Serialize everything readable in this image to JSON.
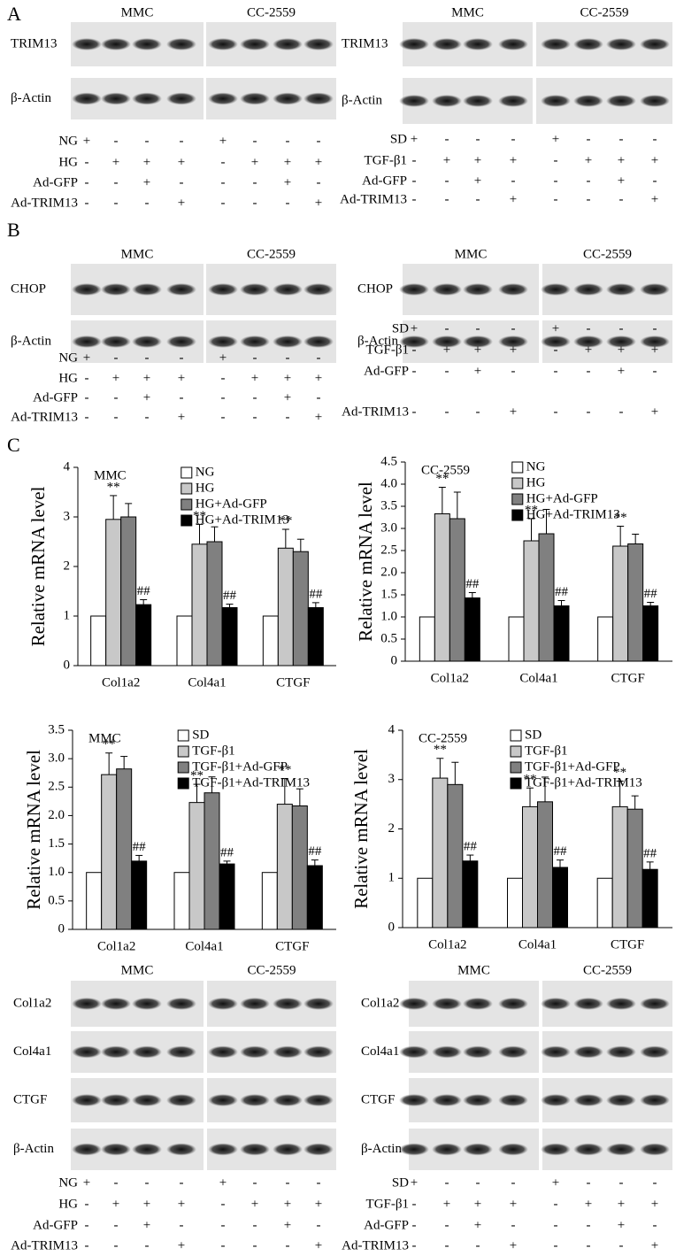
{
  "panel_labels": [
    "A",
    "B",
    "C"
  ],
  "blots": [
    {
      "cell_lines": [
        "MMC",
        "CC-2559"
      ],
      "rows": [
        "TRIM13",
        "β-Actin"
      ],
      "conditions": [
        {
          "name": "NG",
          "signs": [
            "+",
            "-",
            "-",
            "-",
            "+",
            "-",
            "-",
            "-"
          ]
        },
        {
          "name": "HG",
          "signs": [
            "-",
            "+",
            "+",
            "+",
            "-",
            "+",
            "+",
            "+"
          ]
        },
        {
          "name": "Ad-GFP",
          "signs": [
            "-",
            "-",
            "+",
            "-",
            "-",
            "-",
            "+",
            "-"
          ]
        },
        {
          "name": "Ad-TRIM13",
          "signs": [
            "-",
            "-",
            "-",
            "+",
            "-",
            "-",
            "-",
            "+"
          ]
        }
      ]
    },
    {
      "cell_lines": [
        "MMC",
        "CC-2559"
      ],
      "rows": [
        "TRIM13",
        "β-Actin"
      ],
      "conditions": [
        {
          "name": "SD",
          "signs": [
            "+",
            "-",
            "-",
            "-",
            "+",
            "-",
            "-",
            "-"
          ]
        },
        {
          "name": "TGF-β1",
          "signs": [
            "-",
            "+",
            "+",
            "+",
            "-",
            "+",
            "+",
            "+"
          ]
        },
        {
          "name": "Ad-GFP",
          "signs": [
            "-",
            "-",
            "+",
            "-",
            "-",
            "-",
            "+",
            "-"
          ]
        },
        {
          "name": "Ad-TRIM13",
          "signs": [
            "-",
            "-",
            "-",
            "+",
            "-",
            "-",
            "-",
            "+"
          ]
        }
      ]
    },
    {
      "cell_lines": [
        "MMC",
        "CC-2559"
      ],
      "rows": [
        "CHOP",
        "β-Actin"
      ],
      "conditions": [
        {
          "name": "NG",
          "signs": [
            "+",
            "-",
            "-",
            "-",
            "+",
            "-",
            "-",
            "-"
          ]
        },
        {
          "name": "HG",
          "signs": [
            "-",
            "+",
            "+",
            "+",
            "-",
            "+",
            "+",
            "+"
          ]
        },
        {
          "name": "Ad-GFP",
          "signs": [
            "-",
            "-",
            "+",
            "-",
            "-",
            "-",
            "+",
            "-"
          ]
        },
        {
          "name": "Ad-TRIM13",
          "signs": [
            "-",
            "-",
            "-",
            "+",
            "-",
            "-",
            "-",
            "+"
          ]
        }
      ]
    },
    {
      "cell_lines": [
        "MMC",
        "CC-2559"
      ],
      "rows": [
        "CHOP",
        "β-Actin"
      ],
      "conditions": [
        {
          "name": "SD",
          "signs": [
            "+",
            "-",
            "-",
            "-",
            "+",
            "-",
            "-",
            "-"
          ]
        },
        {
          "name": "TGF-β1",
          "signs": [
            "-",
            "+",
            "+",
            "+",
            "-",
            "+",
            "+",
            "+"
          ]
        },
        {
          "name": "Ad-GFP",
          "signs": [
            "-",
            "-",
            "+",
            "-",
            "-",
            "-",
            "+",
            "-"
          ]
        },
        {
          "name": "Ad-TRIM13",
          "signs": [
            "-",
            "-",
            "-",
            "+",
            "-",
            "-",
            "-",
            "+"
          ]
        }
      ]
    },
    {
      "cell_lines": [
        "MMC",
        "CC-2559"
      ],
      "rows": [
        "Col1a2",
        "Col4a1",
        "CTGF",
        "β-Actin"
      ],
      "conditions": [
        {
          "name": "NG",
          "signs": [
            "+",
            "-",
            "-",
            "-",
            "+",
            "-",
            "-",
            "-"
          ]
        },
        {
          "name": "HG",
          "signs": [
            "-",
            "+",
            "+",
            "+",
            "-",
            "+",
            "+",
            "+"
          ]
        },
        {
          "name": "Ad-GFP",
          "signs": [
            "-",
            "-",
            "+",
            "-",
            "-",
            "-",
            "+",
            "-"
          ]
        },
        {
          "name": "Ad-TRIM13",
          "signs": [
            "-",
            "-",
            "-",
            "+",
            "-",
            "-",
            "-",
            "+"
          ]
        }
      ]
    },
    {
      "cell_lines": [
        "MMC",
        "CC-2559"
      ],
      "rows": [
        "Col1a2",
        "Col4a1",
        "CTGF",
        "β-Actin"
      ],
      "conditions": [
        {
          "name": "SD",
          "signs": [
            "+",
            "-",
            "-",
            "-",
            "+",
            "-",
            "-",
            "-"
          ]
        },
        {
          "name": "TGF-β1",
          "signs": [
            "-",
            "+",
            "+",
            "+",
            "-",
            "+",
            "+",
            "+"
          ]
        },
        {
          "name": "Ad-GFP",
          "signs": [
            "-",
            "-",
            "+",
            "-",
            "-",
            "-",
            "+",
            "-"
          ]
        },
        {
          "name": "Ad-TRIM13",
          "signs": [
            "-",
            "-",
            "-",
            "+",
            "-",
            "-",
            "-",
            "+"
          ]
        }
      ]
    }
  ],
  "chart_data": [
    {
      "type": "bar",
      "title": "MMC",
      "y_label": "Relative mRNA level",
      "legend": "upper right",
      "categories": [
        "Col1a2",
        "Col4a1",
        "CTGF"
      ],
      "ylim": [
        0,
        4
      ],
      "yticks": [
        0,
        1,
        2,
        3,
        4
      ],
      "series": [
        {
          "name": "NG",
          "color": "#ffffff",
          "values": [
            1,
            1,
            1
          ]
        },
        {
          "name": "HG",
          "color": "#c8c8c8",
          "values": [
            2.95,
            2.45,
            2.37
          ],
          "errors": [
            0.48,
            0.4,
            0.38
          ],
          "annotation": "**"
        },
        {
          "name": "HG+Ad-GFP",
          "color": "#808080",
          "values": [
            3.0,
            2.5,
            2.3
          ],
          "errors": [
            0.27,
            0.3,
            0.25
          ]
        },
        {
          "name": "HG+Ad-TRIM13",
          "color": "#000000",
          "values": [
            1.23,
            1.17,
            1.17
          ],
          "errors": [
            0.1,
            0.07,
            0.1
          ],
          "annotation": "##"
        }
      ]
    },
    {
      "type": "bar",
      "title": "CC-2559",
      "y_label": "Relative mRNA level",
      "legend": "upper right",
      "categories": [
        "Col1a2",
        "Col4a1",
        "CTGF"
      ],
      "ylim": [
        0,
        4.5
      ],
      "yticks": [
        0,
        0.5,
        {
          "value": 1,
          "label": "1.0"
        },
        1.5,
        {
          "value": 2,
          "label": "2.0"
        },
        2.5,
        {
          "value": 3,
          "label": "3.0"
        },
        3.5,
        {
          "value": 4,
          "label": "4.0"
        },
        4.5
      ],
      "series": [
        {
          "name": "NG",
          "color": "#ffffff",
          "values": [
            1,
            1,
            1
          ]
        },
        {
          "name": "HG",
          "color": "#c8c8c8",
          "values": [
            3.33,
            2.72,
            2.6
          ],
          "errors": [
            0.6,
            0.5,
            0.45
          ],
          "annotation": "**"
        },
        {
          "name": "HG+Ad-GFP",
          "color": "#808080",
          "values": [
            3.22,
            2.88,
            2.65
          ],
          "errors": [
            0.6,
            0.55,
            0.22
          ]
        },
        {
          "name": "HG+Ad-TRIM13",
          "color": "#000000",
          "values": [
            1.43,
            1.25,
            1.25
          ],
          "errors": [
            0.12,
            0.12,
            0.08
          ],
          "annotation": "##"
        }
      ]
    },
    {
      "type": "bar",
      "title": "MMC",
      "y_label": "Relative mRNA level",
      "legend": "upper right",
      "categories": [
        "Col1a2",
        "Col4a1",
        "CTGF"
      ],
      "ylim": [
        0,
        3.5
      ],
      "yticks": [
        0,
        0.5,
        {
          "value": 1,
          "label": "1.0"
        },
        1.5,
        {
          "value": 2,
          "label": "2.0"
        },
        2.5,
        {
          "value": 3,
          "label": "3.0"
        },
        3.5
      ],
      "series": [
        {
          "name": "SD",
          "color": "#ffffff",
          "values": [
            1,
            1,
            1
          ]
        },
        {
          "name": "TGF-β1",
          "color": "#c8c8c8",
          "values": [
            2.72,
            2.23,
            2.2
          ],
          "errors": [
            0.38,
            0.32,
            0.45
          ],
          "annotation": "**"
        },
        {
          "name": "TGF-β1+Ad-GFP",
          "color": "#808080",
          "values": [
            2.82,
            2.4,
            2.17
          ],
          "errors": [
            0.22,
            0.28,
            0.3
          ]
        },
        {
          "name": "TGF-β1+Ad-TRIM13",
          "color": "#000000",
          "values": [
            1.2,
            1.15,
            1.12
          ],
          "errors": [
            0.1,
            0.05,
            0.1
          ],
          "annotation": "##"
        }
      ]
    },
    {
      "type": "bar",
      "title": "CC-2559",
      "y_label": "Relative mRNA level",
      "legend": "upper right",
      "categories": [
        "Col1a2",
        "Col4a1",
        "CTGF"
      ],
      "ylim": [
        0,
        4
      ],
      "yticks": [
        0,
        1,
        2,
        3,
        4
      ],
      "series": [
        {
          "name": "SD",
          "color": "#ffffff",
          "values": [
            1,
            1,
            1
          ]
        },
        {
          "name": "TGF-β1",
          "color": "#c8c8c8",
          "values": [
            3.03,
            2.45,
            2.45
          ],
          "errors": [
            0.4,
            0.38,
            0.52
          ],
          "annotation": "**"
        },
        {
          "name": "TGF-β1+Ad-GFP",
          "color": "#808080",
          "values": [
            2.9,
            2.55,
            2.4
          ],
          "errors": [
            0.45,
            0.5,
            0.27
          ]
        },
        {
          "name": "TGF-β1+Ad-TRIM13",
          "color": "#000000",
          "values": [
            1.35,
            1.22,
            1.18
          ],
          "errors": [
            0.12,
            0.15,
            0.15
          ],
          "annotation": "##"
        }
      ]
    }
  ]
}
